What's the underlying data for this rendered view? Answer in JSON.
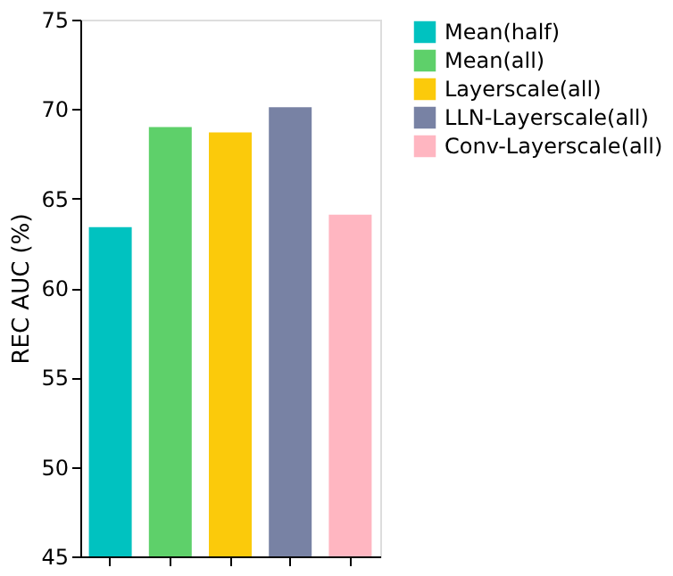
{
  "chart_data": {
    "type": "bar",
    "ylabel": "REC AUC (%)",
    "categories": [
      null,
      null,
      null,
      null,
      null
    ],
    "series": [
      {
        "name": "Mean(half)",
        "color": "#00c2c0",
        "values": [
          63.4,
          null,
          null,
          null,
          null
        ]
      },
      {
        "name": "Mean(all)",
        "color": "#5ed06a",
        "values": [
          null,
          69.0,
          null,
          null,
          null
        ]
      },
      {
        "name": "Layerscale(all)",
        "color": "#fbca0b",
        "values": [
          null,
          null,
          68.7,
          null,
          null
        ]
      },
      {
        "name": "LLN-Layerscale(all)",
        "color": "#7882a4",
        "values": [
          null,
          null,
          null,
          70.1,
          null
        ]
      },
      {
        "name": "Conv-Layerscale(all)",
        "color": "#ffb6c1",
        "values": [
          null,
          null,
          null,
          null,
          64.1
        ]
      }
    ],
    "ylim": [
      45,
      75
    ],
    "yticks": [
      45,
      50,
      55,
      60,
      65,
      70,
      75
    ],
    "grid": false,
    "legend": "right",
    "tick_labels": "y"
  }
}
